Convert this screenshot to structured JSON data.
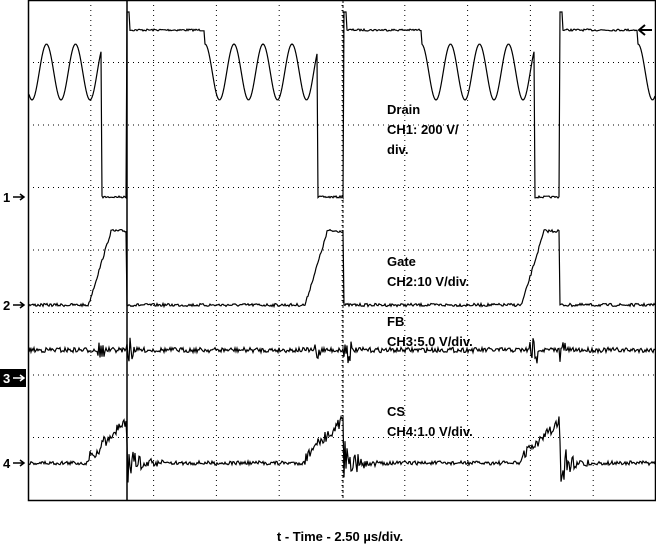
{
  "channels": [
    {
      "marker": "1",
      "name": "Drain",
      "scale_lines": [
        "CH1: 200 V/",
        "div."
      ]
    },
    {
      "marker": "2",
      "name": "Gate",
      "scale_lines": [
        "CH2:10 V/div."
      ]
    },
    {
      "marker": "3",
      "name": "FB",
      "scale_lines": [
        "CH3:5.0 V/div."
      ]
    },
    {
      "marker": "4",
      "name": "CS",
      "scale_lines": [
        "CH4:1.0 V/div."
      ]
    }
  ],
  "x_axis_label": "t - Time - 2.50 µs/div."
}
